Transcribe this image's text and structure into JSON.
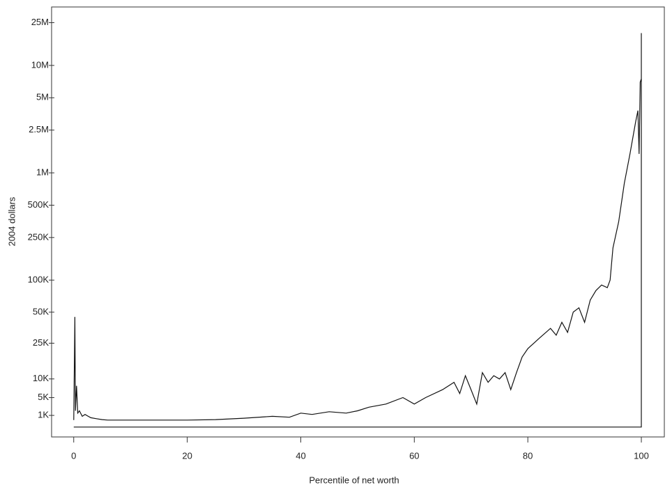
{
  "chart_data": {
    "type": "line",
    "yscale": "asinh",
    "xlabel": "Percentile of net worth",
    "ylabel": "2004 dollars",
    "xlim": [
      -3.9,
      104.05
    ],
    "ylim": [
      -3700,
      35000000
    ],
    "xticks": [
      0,
      20,
      40,
      60,
      80,
      100
    ],
    "yticks": [
      {
        "value": 1000,
        "label": "1K"
      },
      {
        "value": 5000,
        "label": "5K"
      },
      {
        "value": 10000,
        "label": "10K"
      },
      {
        "value": 25000,
        "label": "25K"
      },
      {
        "value": 50000,
        "label": "50K"
      },
      {
        "value": 100000,
        "label": "100K"
      },
      {
        "value": 250000,
        "label": "250K"
      },
      {
        "value": 500000,
        "label": "500K"
      },
      {
        "value": 1000000,
        "label": "1M"
      },
      {
        "value": 2500000,
        "label": "2.5M"
      },
      {
        "value": 5000000,
        "label": "5M"
      },
      {
        "value": 10000000,
        "label": "10M"
      },
      {
        "value": 25000000,
        "label": "25M"
      }
    ],
    "series": [
      {
        "color": "#111111",
        "x": [
          0,
          0.2,
          0.3,
          0.5,
          0.7,
          1,
          1.5,
          2,
          3,
          4,
          5,
          6,
          10,
          20,
          25,
          30,
          35,
          38,
          40,
          42,
          45,
          48,
          50,
          52,
          55,
          58,
          60,
          62,
          65,
          67,
          68,
          69,
          70,
          71,
          72,
          73,
          74,
          75,
          76,
          77,
          78,
          79,
          80,
          82,
          84,
          85,
          86,
          87,
          88,
          89,
          90,
          91,
          92,
          93,
          94,
          94.5,
          95,
          96,
          97,
          98,
          99,
          99.4,
          99.6,
          99.8,
          100,
          100,
          100,
          0
        ],
        "values": [
          0,
          45000,
          2000,
          8000,
          1500,
          2000,
          800,
          1200,
          500,
          300,
          100,
          0,
          0,
          0,
          100,
          400,
          800,
          600,
          1500,
          1200,
          1800,
          1500,
          2000,
          2800,
          3500,
          5000,
          3500,
          5000,
          7000,
          9000,
          6000,
          11000,
          7000,
          3500,
          12000,
          9000,
          11000,
          10000,
          12000,
          7000,
          12000,
          18000,
          22000,
          28000,
          35000,
          30000,
          40000,
          32000,
          50000,
          55000,
          40000,
          65000,
          80000,
          90000,
          85000,
          100000,
          200000,
          350000,
          800000,
          1500000,
          3000000,
          3800000,
          1500000,
          7000000,
          7500000,
          20000000,
          -1500,
          -1500
        ]
      }
    ]
  }
}
